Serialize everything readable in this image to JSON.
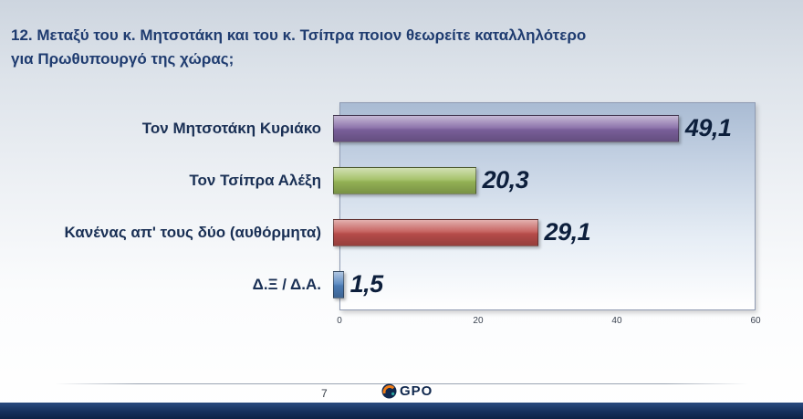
{
  "slide": {
    "title_line1": "12. Μεταξύ του κ. Μητσοτάκη και του κ. Τσίπρα ποιον θεωρείτε καταλληλότερο",
    "title_line2": "για Πρωθυπουργό της χώρας;",
    "page_number": "7",
    "logo_text": "GPO"
  },
  "chart_data": {
    "type": "bar",
    "orientation": "horizontal",
    "title": "12. Μεταξύ του κ. Μητσοτάκη και του κ. Τσίπρα ποιον θεωρείτε καταλληλότερο για Πρωθυπουργό της χώρας;",
    "categories": [
      "Τον Μητσοτάκη Κυριάκο",
      "Τον Τσίπρα Αλέξη",
      "Κανένας απ' τους δύο (αυθόρμητα)",
      "Δ.Ξ / Δ.Α."
    ],
    "values": [
      49.1,
      20.3,
      29.1,
      1.5
    ],
    "value_labels": [
      "49,1",
      "20,3",
      "29,1",
      "1,5"
    ],
    "bar_colors": [
      "#8064A2",
      "#9BBB59",
      "#C0504D",
      "#4F81BD"
    ],
    "xlim": [
      0,
      60
    ],
    "x_ticks": [
      "0",
      "20",
      "40",
      "60"
    ],
    "grid": false,
    "legend": false
  }
}
